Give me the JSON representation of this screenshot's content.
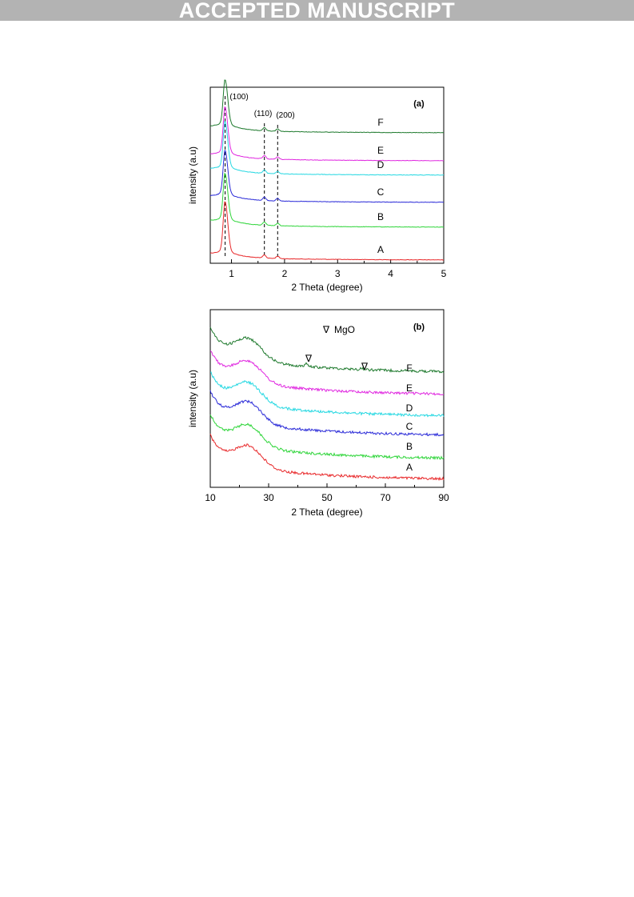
{
  "banner": {
    "text": "ACCEPTED MANUSCRIPT"
  },
  "chart_data": [
    {
      "type": "line",
      "panel_label": "(a)",
      "xlabel": "2 Theta (degree)",
      "ylabel": "intensity (a.u)",
      "xlim": [
        0.6,
        5
      ],
      "xticks": [
        1,
        2,
        3,
        4,
        5
      ],
      "yticks": [],
      "grid": false,
      "legend": "none",
      "peak_labels": [
        {
          "text": "(100)",
          "x": 0.88
        },
        {
          "text": "(110)",
          "x": 1.62
        },
        {
          "text": "(200)",
          "x": 1.87
        }
      ],
      "dashed_reference_lines_x": [
        0.88,
        1.62,
        1.87
      ],
      "series": [
        {
          "name": "A",
          "color": "#e8282a",
          "offset": 0,
          "peak_height": 60,
          "peak_x": 0.88
        },
        {
          "name": "B",
          "color": "#2fd53a",
          "offset": 41,
          "peak_height": 54,
          "peak_x": 0.88
        },
        {
          "name": "C",
          "color": "#2a2ad8",
          "offset": 72,
          "peak_height": 52,
          "peak_x": 0.88
        },
        {
          "name": "D",
          "color": "#26d8e2",
          "offset": 106,
          "peak_height": 54,
          "peak_x": 0.88
        },
        {
          "name": "E",
          "color": "#e028e0",
          "offset": 124,
          "peak_height": 54,
          "peak_x": 0.88
        },
        {
          "name": "F",
          "color": "#1f7a2e",
          "offset": 159,
          "peak_height": 53,
          "peak_x": 0.88
        }
      ]
    },
    {
      "type": "line",
      "panel_label": "(b)",
      "xlabel": "2 Theta (degree)",
      "ylabel": "intensity (a.u)",
      "xlim": [
        10,
        90
      ],
      "xticks": [
        10,
        30,
        50,
        70,
        90
      ],
      "yticks": [],
      "grid": false,
      "legend": "none",
      "legend_marker": {
        "symbol": "∇",
        "text": "MgO"
      },
      "mgo_markers_x": [
        43,
        62
      ],
      "series": [
        {
          "name": "A",
          "color": "#e8282a",
          "offset": 0
        },
        {
          "name": "B",
          "color": "#2fd53a",
          "offset": 26
        },
        {
          "name": "C",
          "color": "#2a2ad8",
          "offset": 55
        },
        {
          "name": "D",
          "color": "#26d8e2",
          "offset": 79
        },
        {
          "name": "E",
          "color": "#e028e0",
          "offset": 106
        },
        {
          "name": "F",
          "color": "#1f7a2e",
          "offset": 134
        }
      ]
    }
  ]
}
